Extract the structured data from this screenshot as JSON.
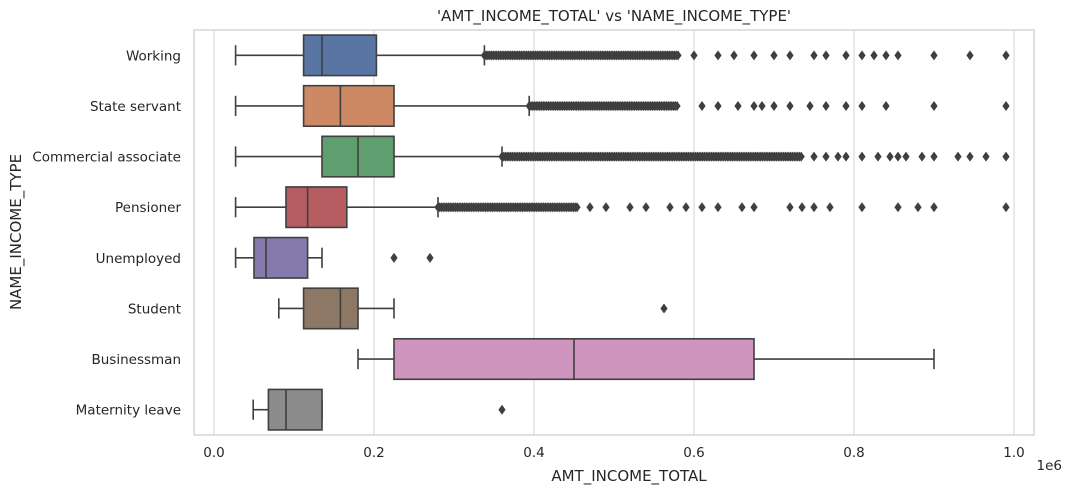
{
  "chart_data": {
    "type": "boxplot",
    "orientation": "horizontal",
    "title": "'AMT_INCOME_TOTAL' vs 'NAME_INCOME_TYPE'",
    "xlabel": "AMT_INCOME_TOTAL",
    "ylabel": "NAME_INCOME_TYPE",
    "x_offset_label": "1e6",
    "xlim": [
      -0.025,
      1.025
    ],
    "x_ticks": [
      0.0,
      0.2,
      0.4,
      0.6,
      0.8,
      1.0
    ],
    "x_tick_labels": [
      "0.0",
      "0.2",
      "0.4",
      "0.6",
      "0.8",
      "1.0"
    ],
    "grid": true,
    "categories": [
      {
        "name": "Working",
        "color": "#5975a4",
        "min": 0.027,
        "q1": 0.112,
        "median": 0.135,
        "q3": 0.203,
        "max": 0.338,
        "dense_outliers": [
          0.338,
          0.58
        ],
        "outliers": [
          0.6,
          0.63,
          0.65,
          0.675,
          0.7,
          0.72,
          0.75,
          0.765,
          0.79,
          0.81,
          0.825,
          0.84,
          0.855,
          0.9,
          0.945,
          0.99
        ]
      },
      {
        "name": "State servant",
        "color": "#cc8963",
        "min": 0.027,
        "q1": 0.112,
        "median": 0.158,
        "q3": 0.225,
        "max": 0.394,
        "dense_outliers": [
          0.394,
          0.58
        ],
        "outliers": [
          0.61,
          0.63,
          0.655,
          0.675,
          0.685,
          0.7,
          0.72,
          0.745,
          0.765,
          0.79,
          0.81,
          0.84,
          0.9,
          0.99
        ]
      },
      {
        "name": "Commercial associate",
        "color": "#5f9e6e",
        "min": 0.027,
        "q1": 0.135,
        "median": 0.18,
        "q3": 0.225,
        "max": 0.36,
        "dense_outliers": [
          0.36,
          0.735
        ],
        "outliers": [
          0.75,
          0.765,
          0.78,
          0.79,
          0.81,
          0.83,
          0.845,
          0.855,
          0.865,
          0.885,
          0.9,
          0.93,
          0.945,
          0.965,
          0.99
        ]
      },
      {
        "name": "Pensioner",
        "color": "#b55d60",
        "min": 0.027,
        "q1": 0.09,
        "median": 0.117,
        "q3": 0.166,
        "max": 0.28,
        "dense_outliers": [
          0.28,
          0.455
        ],
        "outliers": [
          0.47,
          0.49,
          0.52,
          0.54,
          0.57,
          0.59,
          0.61,
          0.63,
          0.66,
          0.675,
          0.72,
          0.735,
          0.75,
          0.77,
          0.81,
          0.855,
          0.88,
          0.9,
          0.99
        ]
      },
      {
        "name": "Unemployed",
        "color": "#857aab",
        "min": 0.027,
        "q1": 0.05,
        "median": 0.065,
        "q3": 0.117,
        "max": 0.135,
        "dense_outliers": null,
        "outliers": [
          0.225,
          0.27
        ]
      },
      {
        "name": "Student",
        "color": "#8d7866",
        "min": 0.081,
        "q1": 0.112,
        "median": 0.158,
        "q3": 0.18,
        "max": 0.225,
        "dense_outliers": null,
        "outliers": [
          0.5625
        ]
      },
      {
        "name": "Businessman",
        "color": "#d095bf",
        "min": 0.18,
        "q1": 0.225,
        "median": 0.45,
        "q3": 0.675,
        "max": 0.9,
        "dense_outliers": null,
        "outliers": []
      },
      {
        "name": "Maternity leave",
        "color": "#8c8c8c",
        "min": 0.049,
        "q1": 0.068,
        "median": 0.09,
        "q3": 0.135,
        "max": 0.135,
        "dense_outliers": null,
        "outliers": [
          0.36
        ]
      }
    ]
  }
}
